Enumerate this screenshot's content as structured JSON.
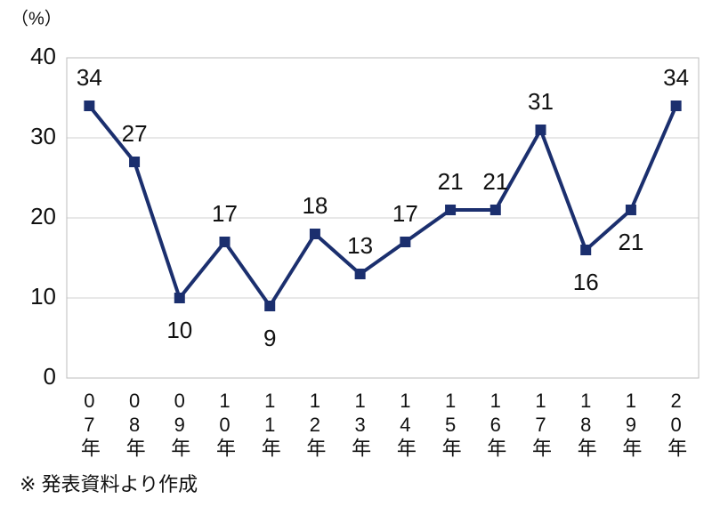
{
  "chart_data": {
    "type": "line",
    "y_axis_label": "（%）",
    "categories": [
      "07年",
      "08年",
      "09年",
      "10年",
      "11年",
      "12年",
      "13年",
      "14年",
      "15年",
      "16年",
      "17年",
      "18年",
      "19年",
      "20年"
    ],
    "series": [
      {
        "color": "#1b2f6e",
        "values": [
          34,
          27,
          10,
          17,
          9,
          18,
          13,
          17,
          21,
          21,
          31,
          16,
          21,
          34
        ]
      }
    ],
    "ylim": [
      0,
      40
    ],
    "yticks": [
      0,
      10,
      20,
      30,
      40
    ],
    "grid": true,
    "note": "※ 発表資料より作成"
  }
}
